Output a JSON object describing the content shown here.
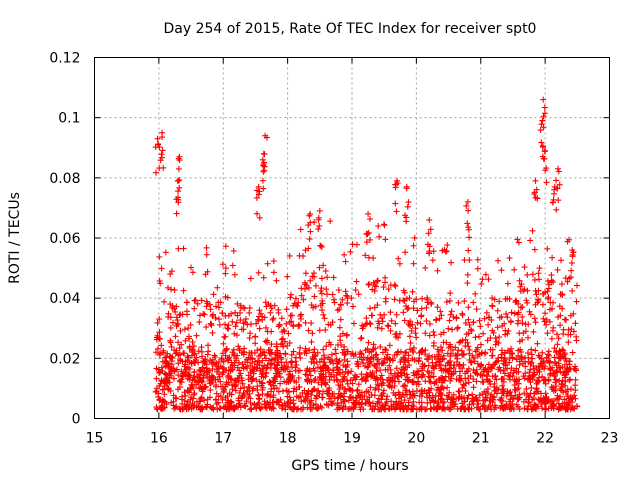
{
  "chart_data": {
    "type": "scatter",
    "title": "Day 254 of 2015, Rate Of TEC Index for receiver spt0",
    "xlabel": "GPS time / hours",
    "ylabel": "ROTI / TECUs",
    "xlim": [
      15,
      23
    ],
    "ylim": [
      0,
      0.12
    ],
    "xticks": [
      "15",
      "16",
      "17",
      "18",
      "19",
      "20",
      "21",
      "22",
      "23"
    ],
    "yticks": [
      "0",
      "0.02",
      "0.04",
      "0.06",
      "0.08",
      "0.1",
      "0.12"
    ],
    "grid": true,
    "marker": "+",
    "color": "#ff0000",
    "data_range_x": [
      15.95,
      22.5
    ],
    "highlights": [
      {
        "x": 15.98,
        "y": 0.093
      },
      {
        "x": 16.05,
        "y": 0.095
      },
      {
        "x": 16.32,
        "y": 0.087
      },
      {
        "x": 16.3,
        "y": 0.079
      },
      {
        "x": 17.65,
        "y": 0.094
      },
      {
        "x": 17.63,
        "y": 0.088
      },
      {
        "x": 17.55,
        "y": 0.077
      },
      {
        "x": 18.5,
        "y": 0.069
      },
      {
        "x": 18.35,
        "y": 0.068
      },
      {
        "x": 19.25,
        "y": 0.068
      },
      {
        "x": 19.7,
        "y": 0.079
      },
      {
        "x": 19.85,
        "y": 0.077
      },
      {
        "x": 20.2,
        "y": 0.066
      },
      {
        "x": 20.8,
        "y": 0.072
      },
      {
        "x": 21.85,
        "y": 0.079
      },
      {
        "x": 21.97,
        "y": 0.106
      },
      {
        "x": 21.96,
        "y": 0.099
      },
      {
        "x": 22.0,
        "y": 0.089
      },
      {
        "x": 22.2,
        "y": 0.083
      },
      {
        "x": 22.15,
        "y": 0.077
      },
      {
        "x": 22.42,
        "y": 0.056
      }
    ],
    "baseline_envelope": {
      "x": [
        16.0,
        16.5,
        17.0,
        17.5,
        18.0,
        18.5,
        19.0,
        19.5,
        20.0,
        20.5,
        21.0,
        21.5,
        22.0,
        22.5
      ],
      "y": [
        0.025,
        0.028,
        0.03,
        0.024,
        0.028,
        0.04,
        0.03,
        0.035,
        0.03,
        0.028,
        0.026,
        0.03,
        0.04,
        0.035
      ]
    }
  }
}
